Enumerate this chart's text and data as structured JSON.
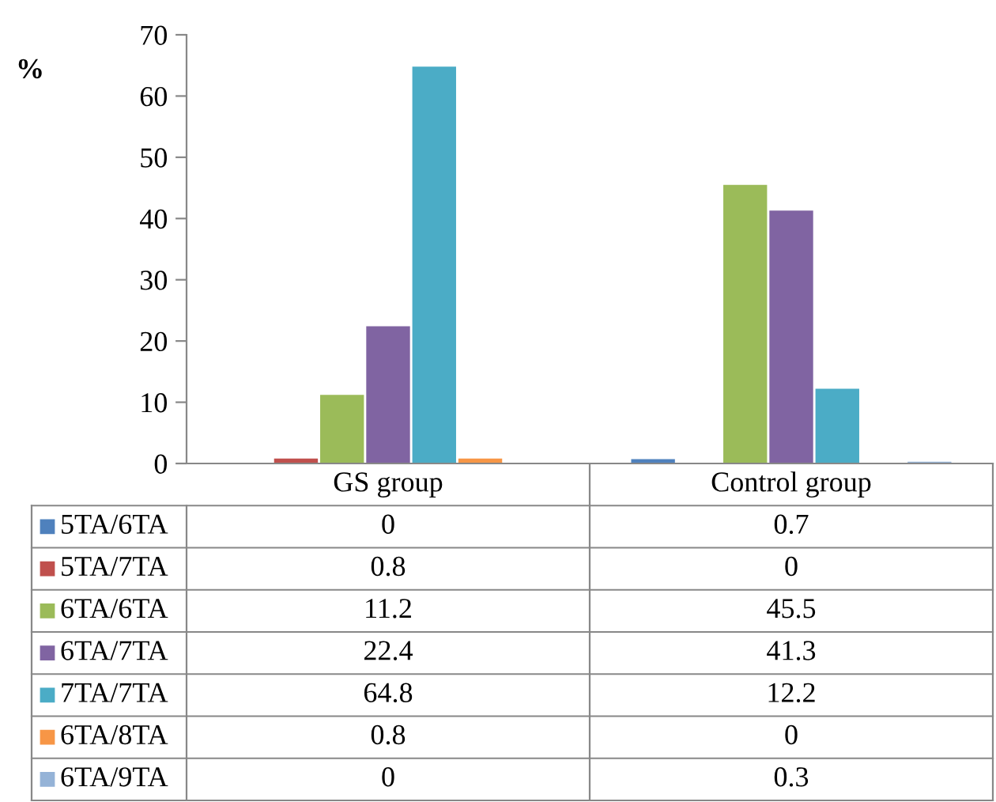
{
  "chart_data": {
    "type": "bar",
    "ylabel": "%",
    "categories": [
      "GS group",
      "Control group"
    ],
    "series": [
      {
        "name": "5TA/6TA",
        "color": "#4f81bd",
        "values": [
          0,
          0.7
        ]
      },
      {
        "name": "5TA/7TA",
        "color": "#c0504d",
        "values": [
          0.8,
          0
        ]
      },
      {
        "name": "6TA/6TA",
        "color": "#9bbb59",
        "values": [
          11.2,
          45.5
        ]
      },
      {
        "name": "6TA/7TA",
        "color": "#8064a2",
        "values": [
          22.4,
          41.3
        ]
      },
      {
        "name": "7TA/7TA",
        "color": "#4bacc6",
        "values": [
          64.8,
          12.2
        ]
      },
      {
        "name": "6TA/8TA",
        "color": "#f79646",
        "values": [
          0.8,
          0
        ]
      },
      {
        "name": "6TA/9TA",
        "color": "#95b3d7",
        "values": [
          0,
          0.3
        ]
      }
    ],
    "ylim": [
      0,
      70
    ],
    "yticks": [
      0,
      10,
      20,
      30,
      40,
      50,
      60,
      70
    ],
    "grid": false,
    "legend": "bottom",
    "data_labels": true
  }
}
